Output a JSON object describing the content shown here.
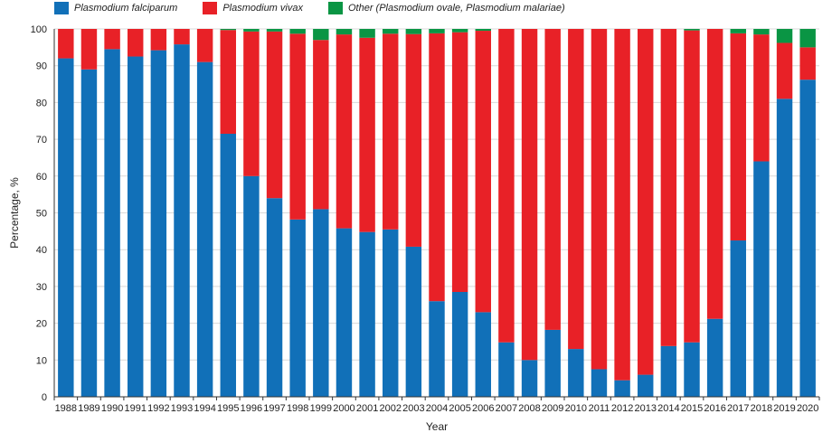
{
  "colors": {
    "falciparum": "#1170b8",
    "vivax": "#e82127",
    "other": "#0a9544"
  },
  "chart_data": {
    "type": "bar",
    "stacked": true,
    "title": "",
    "xlabel": "Year",
    "ylabel": "Percentage, %",
    "ylim": [
      0,
      100
    ],
    "yticks": [
      0,
      10,
      20,
      30,
      40,
      50,
      60,
      70,
      80,
      90,
      100
    ],
    "grid": true,
    "legend_position": "top-left",
    "categories": [
      "1988",
      "1989",
      "1990",
      "1991",
      "1992",
      "1993",
      "1994",
      "1995",
      "1996",
      "1997",
      "1998",
      "1999",
      "2000",
      "2001",
      "2002",
      "2003",
      "2004",
      "2005",
      "2006",
      "2007",
      "2008",
      "2009",
      "2010",
      "2011",
      "2012",
      "2013",
      "2014",
      "2015",
      "2016",
      "2017",
      "2018",
      "2019",
      "2020"
    ],
    "series": [
      {
        "name": "Plasmodium falciparum",
        "color_key": "falciparum",
        "values": [
          92,
          89,
          94.5,
          92.5,
          94.2,
          95.8,
          91,
          71.5,
          60,
          54,
          48.2,
          51,
          45.8,
          44.8,
          45.5,
          40.8,
          26,
          28.5,
          23,
          14.8,
          10,
          18.2,
          13,
          7.5,
          4.5,
          6,
          13.8,
          14.8,
          21.2,
          42.5,
          64,
          81,
          86.2
        ]
      },
      {
        "name": "Plasmodium vivax",
        "color_key": "vivax",
        "values": [
          8,
          11,
          5.5,
          7.5,
          5.8,
          4.2,
          9,
          28.2,
          39.3,
          45.3,
          50.5,
          46,
          52.7,
          52.8,
          53.2,
          57.8,
          72.8,
          70.6,
          76.5,
          85.2,
          90,
          81.8,
          87,
          92.5,
          95.5,
          94,
          86.2,
          84.8,
          78.8,
          56.3,
          34.5,
          15.2,
          8.8
        ]
      },
      {
        "name": "Other (Plasmodium ovale, Plasmodium malariae)",
        "color_key": "other",
        "values": [
          0,
          0,
          0,
          0,
          0,
          0,
          0,
          0.3,
          0.7,
          0.7,
          1.3,
          3,
          1.5,
          2.4,
          1.3,
          1.4,
          1.2,
          0.9,
          0.5,
          0,
          0,
          0,
          0,
          0,
          0,
          0,
          0,
          0.4,
          0,
          1.2,
          1.5,
          3.8,
          5
        ]
      }
    ]
  }
}
